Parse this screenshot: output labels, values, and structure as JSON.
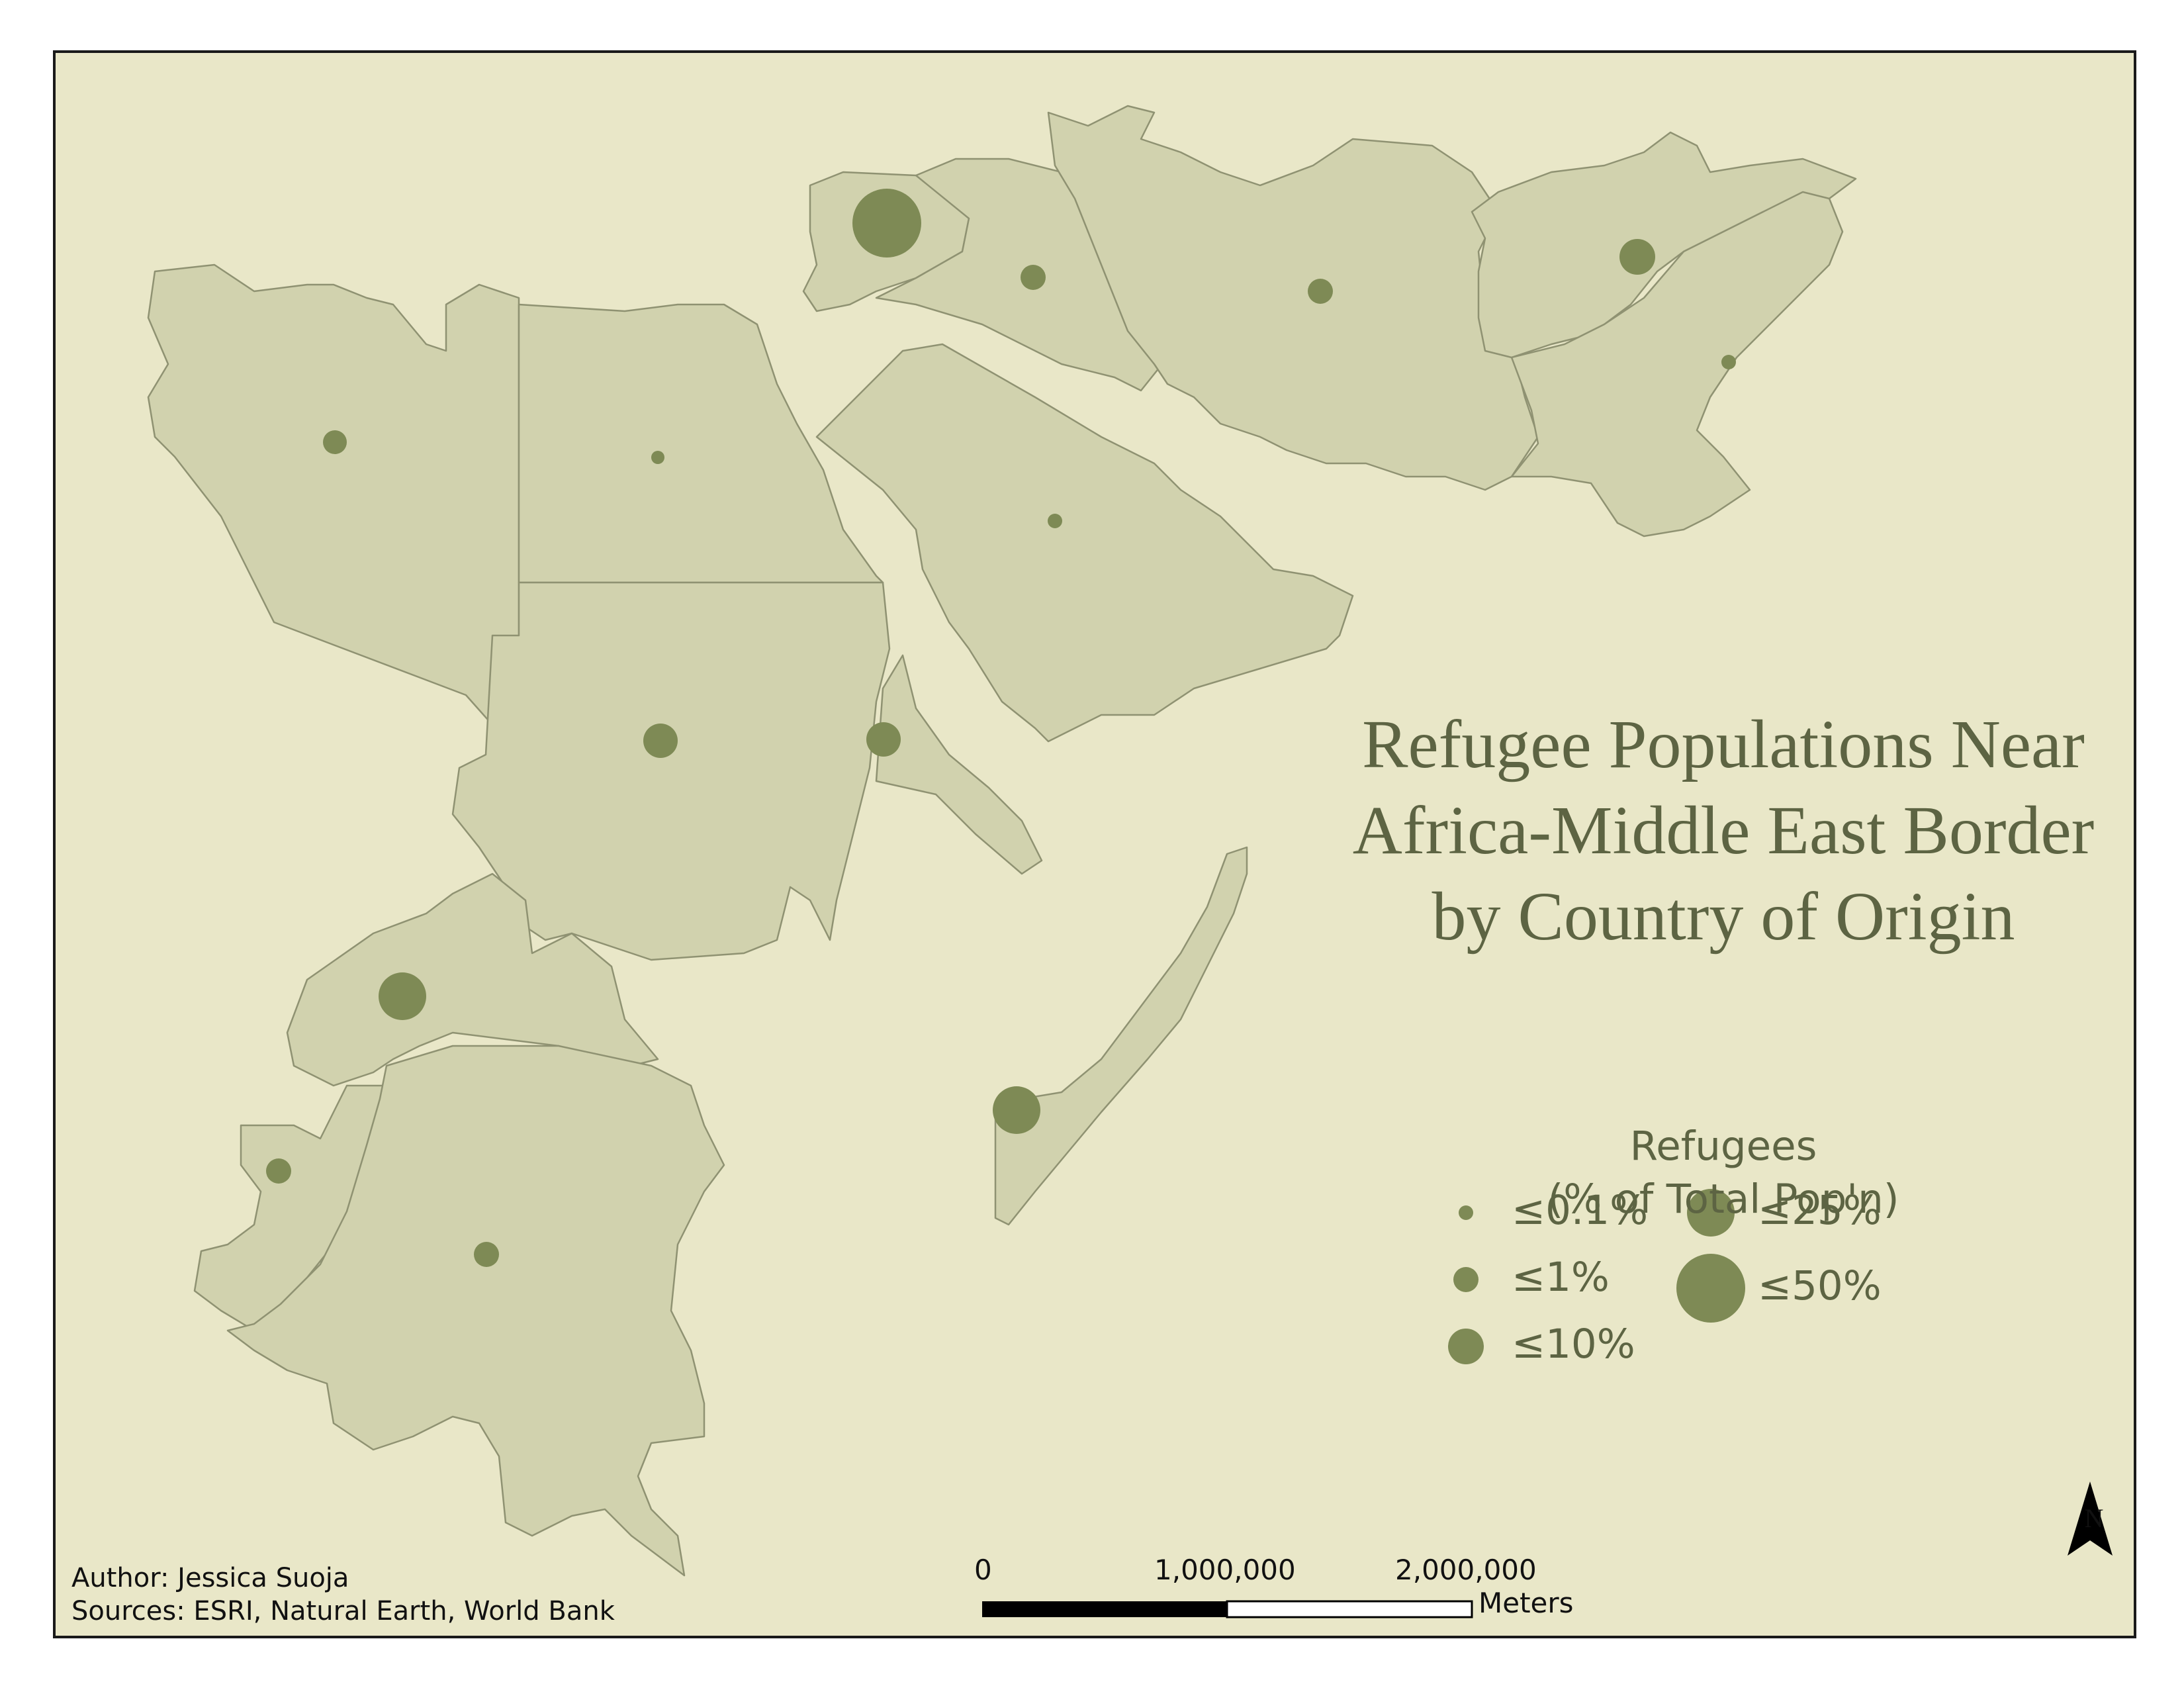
{
  "map": {
    "title_lines": [
      "Refugee Populations Near",
      "Africa-Middle East Border",
      "by Country of Origin"
    ],
    "colors": {
      "background": "#e9e7c8",
      "country_fill": "#d1d2ae",
      "country_stroke": "#8f9272",
      "symbol_fill": "#7e8a55",
      "title_text": "#5d6443"
    },
    "legend": {
      "title_line1": "Refugees",
      "title_line2": "(% of Total Pop'n)",
      "classes": [
        "≤0.1%",
        "≤1%",
        "≤10%",
        "≤25%",
        "≤50%"
      ]
    },
    "credits": {
      "author": "Author: Jessica Suoja",
      "sources": "Sources: ESRI, Natural Earth, World Bank"
    },
    "scale_bar": {
      "ticks": [
        "0",
        "1,000,000",
        "2,000,000"
      ],
      "unit": "Meters"
    },
    "north_arrow": {
      "label": "N",
      "icon": "north-arrow-icon"
    },
    "symbol_classes_by_region": {
      "libya": "≤1%",
      "egypt": "≤0.1%",
      "sudan": "≤10%",
      "eritrea": "≤10%",
      "central-african-republic": "≤25%",
      "congo": "≤1%",
      "dr-congo": "≤1%",
      "somalia": "≤25%",
      "saudi-arabia": "≤0.1%",
      "syria": "≤50%",
      "iraq": "≤1%",
      "iran": "≤1%",
      "afghanistan": "≤10%",
      "pakistan": "≤0.1%"
    }
  }
}
